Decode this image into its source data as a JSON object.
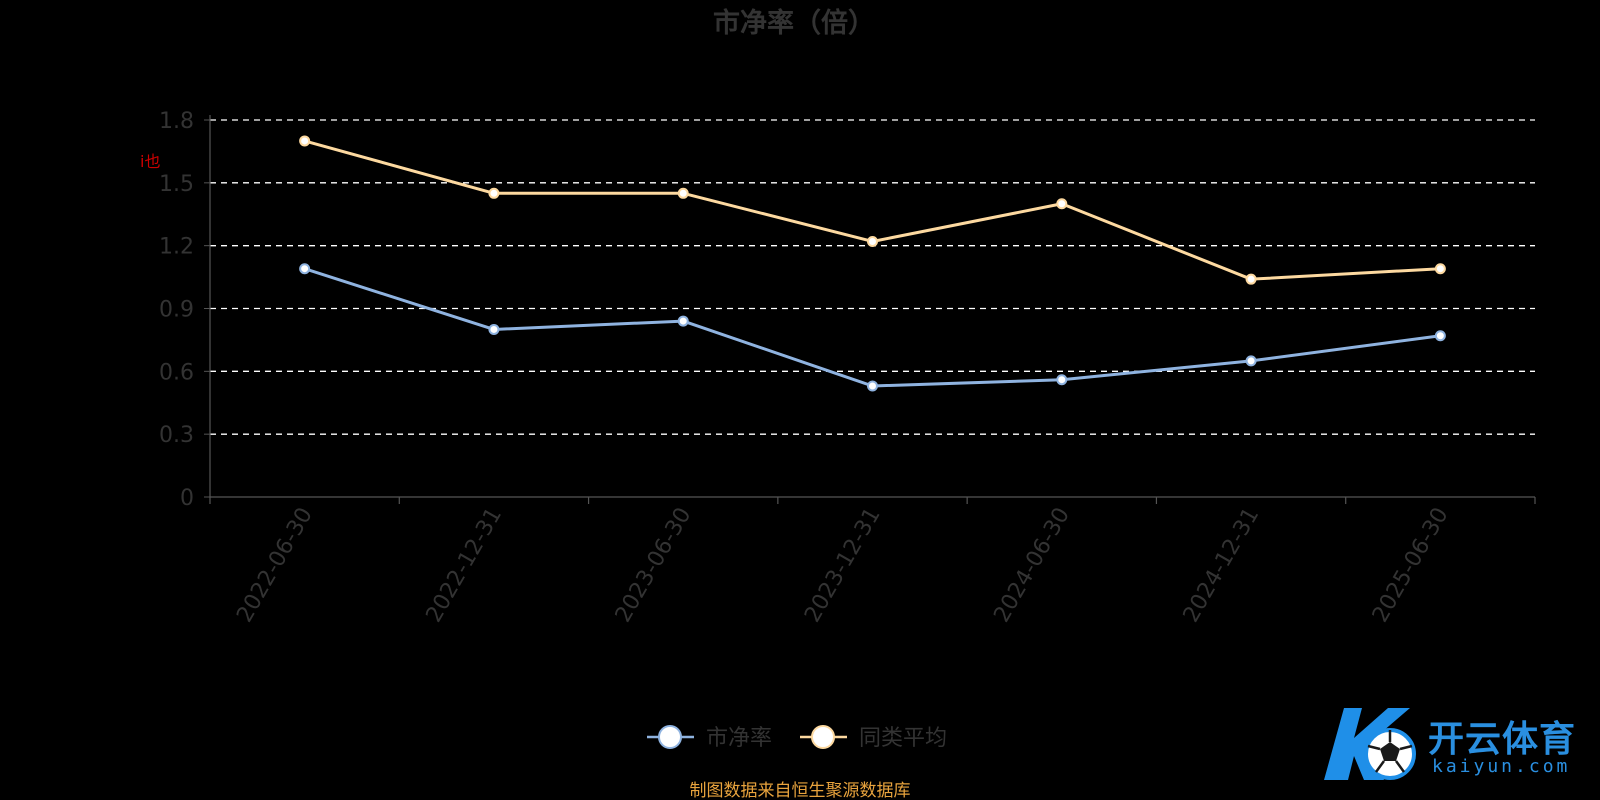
{
  "colors": {
    "background": "#000000",
    "text": "#333333",
    "grid": "#ffffff",
    "axis": "#555555",
    "series_pb": "#8fb3e0",
    "series_avg": "#fdd9a0",
    "marker_fill": "#ffffff",
    "source": "#e8a33d",
    "small_mark": "#cc0000",
    "watermark_blue": "#1f8fe8",
    "watermark_text": "#2a8fe0"
  },
  "chart_data": {
    "type": "line",
    "title": "市净率（倍）",
    "categories": [
      "2022-06-30",
      "2022-12-31",
      "2023-06-30",
      "2023-12-31",
      "2024-06-30",
      "2024-12-31",
      "2025-06-30"
    ],
    "y_ticks": [
      "0",
      "0.3",
      "0.6",
      "0.9",
      "1.2",
      "1.5",
      "1.8"
    ],
    "ylim": [
      0,
      1.8
    ],
    "grid": true,
    "legend_position": "bottom-center",
    "series": [
      {
        "name": "市净率",
        "values": [
          1.09,
          0.8,
          0.84,
          0.53,
          0.56,
          0.65,
          0.77
        ]
      },
      {
        "name": "同类平均",
        "values": [
          1.7,
          1.45,
          1.45,
          1.22,
          1.4,
          1.04,
          1.09
        ]
      }
    ]
  },
  "small_mark": "i也",
  "source_note": "制图数据来自恒生聚源数据库",
  "watermark": {
    "main": "开云体育",
    "sub": "kaiyun.com"
  }
}
